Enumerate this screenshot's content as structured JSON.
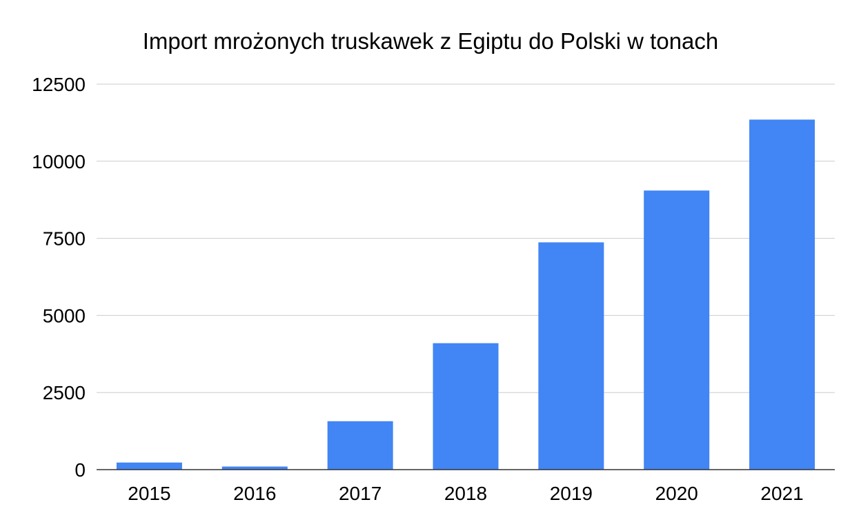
{
  "chart_data": {
    "type": "bar",
    "title": "Import mrożonych truskawek z Egiptu do Polski w tonach",
    "xlabel": "",
    "ylabel": "",
    "categories": [
      "2015",
      "2016",
      "2017",
      "2018",
      "2019",
      "2020",
      "2021"
    ],
    "series": [
      {
        "values": [
          230,
          100,
          1570,
          4100,
          7370,
          9050,
          11350
        ],
        "color": "#4285F4"
      }
    ],
    "ylim": [
      0,
      12500
    ],
    "yticks": [
      "0",
      "2500",
      "5000",
      "7500",
      "10000",
      "12500"
    ],
    "grid": true,
    "legend": "none"
  }
}
